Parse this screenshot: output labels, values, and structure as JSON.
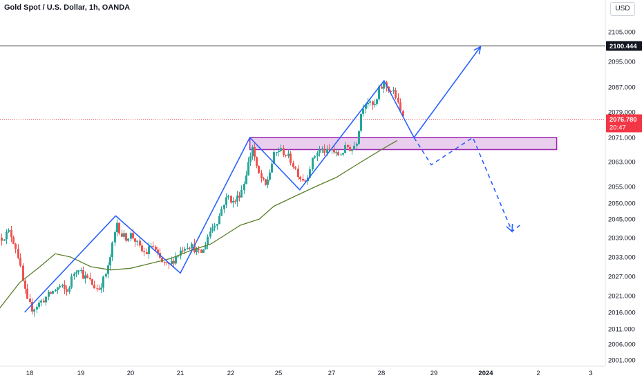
{
  "title": "Gold Spot / U.S. Dollar, 1h, OANDA",
  "currency_button": "USD",
  "colors": {
    "up": "#26a69a",
    "down": "#ef5350",
    "ma": "#5b7f2a",
    "pattern": "#2962ff",
    "zone_fill": "#e1bee7",
    "zone_border": "#9c27b0",
    "price_tag": "#f23645",
    "level_tag": "#131722"
  },
  "chart_data": {
    "type": "candlestick",
    "title": "Gold Spot / U.S. Dollar, 1h, OANDA",
    "y_ticks": [
      "2001.000",
      "2006.000",
      "2011.000",
      "2016.000",
      "2021.000",
      "2027.000",
      "2033.000",
      "2039.000",
      "2045.000",
      "2050.000",
      "2055.000",
      "2063.000",
      "2071.000",
      "2079.000",
      "2087.000",
      "2095.000",
      "2105.000"
    ],
    "y_tick_values": [
      2001,
      2006,
      2011,
      2016,
      2021,
      2027,
      2033,
      2039,
      2045,
      2050,
      2055,
      2063,
      2071,
      2079,
      2087,
      2095,
      2105
    ],
    "x_ticks": [
      {
        "label": "18",
        "day": 0,
        "bold": false
      },
      {
        "label": "19",
        "day": 1,
        "bold": false
      },
      {
        "label": "20",
        "day": 2,
        "bold": false
      },
      {
        "label": "21",
        "day": 3,
        "bold": false
      },
      {
        "label": "22",
        "day": 4,
        "bold": false
      },
      {
        "label": "25",
        "day": 5,
        "bold": false
      },
      {
        "label": "27",
        "day": 6,
        "bold": false
      },
      {
        "label": "28",
        "day": 7,
        "bold": false
      },
      {
        "label": "29",
        "day": 8,
        "bold": false
      },
      {
        "label": "2024",
        "day": 9,
        "bold": true
      },
      {
        "label": "2",
        "day": 10,
        "bold": false
      },
      {
        "label": "3",
        "day": 11,
        "bold": false
      }
    ],
    "ohlc_path": [
      [
        -0.55,
        2039
      ],
      [
        -0.4,
        2041
      ],
      [
        -0.25,
        2035
      ],
      [
        -0.15,
        2026
      ],
      [
        -0.05,
        2019
      ],
      [
        0.05,
        2017
      ],
      [
        0.2,
        2019
      ],
      [
        0.35,
        2021
      ],
      [
        0.5,
        2023
      ],
      [
        0.6,
        2024
      ],
      [
        0.72,
        2022
      ],
      [
        0.85,
        2028
      ],
      [
        0.95,
        2030
      ],
      [
        1.05,
        2027
      ],
      [
        1.15,
        2026
      ],
      [
        1.25,
        2024
      ],
      [
        1.35,
        2023
      ],
      [
        1.45,
        2026
      ],
      [
        1.55,
        2030
      ],
      [
        1.65,
        2038
      ],
      [
        1.72,
        2044
      ],
      [
        1.8,
        2040
      ],
      [
        1.9,
        2039
      ],
      [
        2.0,
        2040
      ],
      [
        2.1,
        2038
      ],
      [
        2.2,
        2035
      ],
      [
        2.3,
        2034
      ],
      [
        2.42,
        2037
      ],
      [
        2.55,
        2033
      ],
      [
        2.65,
        2031
      ],
      [
        2.75,
        2030
      ],
      [
        2.85,
        2032
      ],
      [
        2.95,
        2034
      ],
      [
        3.05,
        2036
      ],
      [
        3.15,
        2037
      ],
      [
        3.25,
        2036
      ],
      [
        3.35,
        2034
      ],
      [
        3.45,
        2035
      ],
      [
        3.55,
        2040
      ],
      [
        3.65,
        2043
      ],
      [
        3.75,
        2045
      ],
      [
        3.85,
        2050
      ],
      [
        3.95,
        2052
      ],
      [
        4.05,
        2050
      ],
      [
        4.15,
        2052
      ],
      [
        4.25,
        2055
      ],
      [
        4.35,
        2062
      ],
      [
        4.45,
        2068
      ],
      [
        4.55,
        2060
      ],
      [
        4.65,
        2057
      ],
      [
        4.72,
        2055
      ],
      [
        4.8,
        2059
      ],
      [
        4.9,
        2065
      ],
      [
        5.0,
        2067
      ],
      [
        5.1,
        2066
      ],
      [
        5.2,
        2064
      ],
      [
        5.3,
        2061
      ],
      [
        5.4,
        2058
      ],
      [
        5.5,
        2057
      ],
      [
        5.6,
        2062
      ],
      [
        5.7,
        2066
      ],
      [
        5.8,
        2067
      ],
      [
        5.9,
        2066
      ],
      [
        6.0,
        2067
      ],
      [
        6.1,
        2065
      ],
      [
        6.2,
        2066
      ],
      [
        6.3,
        2068
      ],
      [
        6.4,
        2067
      ],
      [
        6.5,
        2070
      ],
      [
        6.6,
        2080
      ],
      [
        6.7,
        2083
      ],
      [
        6.78,
        2081
      ],
      [
        6.88,
        2081
      ],
      [
        6.95,
        2086
      ],
      [
        7.05,
        2088
      ],
      [
        7.15,
        2086
      ],
      [
        7.25,
        2085
      ],
      [
        7.35,
        2079
      ],
      [
        7.42,
        2078
      ]
    ],
    "ma_points": [
      [
        -0.6,
        2017
      ],
      [
        -0.2,
        2025
      ],
      [
        0.2,
        2030
      ],
      [
        0.5,
        2034
      ],
      [
        0.8,
        2033
      ],
      [
        1.2,
        2030
      ],
      [
        1.6,
        2029
      ],
      [
        2.0,
        2029.5
      ],
      [
        2.4,
        2031
      ],
      [
        2.8,
        2032.5
      ],
      [
        3.2,
        2035
      ],
      [
        3.6,
        2037
      ],
      [
        3.9,
        2040
      ],
      [
        4.2,
        2043
      ],
      [
        4.6,
        2045
      ],
      [
        4.9,
        2049
      ],
      [
        5.3,
        2052
      ],
      [
        5.7,
        2055
      ],
      [
        6.1,
        2058
      ],
      [
        6.5,
        2062
      ],
      [
        6.8,
        2065
      ],
      [
        7.1,
        2068
      ],
      [
        7.3,
        2070
      ]
    ],
    "pattern_zigzag": [
      [
        -0.1,
        2016
      ],
      [
        1.7,
        2046
      ],
      [
        3.0,
        2028
      ],
      [
        4.4,
        2071
      ],
      [
        5.4,
        2054
      ],
      [
        7.05,
        2089
      ],
      [
        7.62,
        2071
      ],
      [
        8.9,
        2100
      ]
    ],
    "projection_path": [
      [
        7.62,
        2071
      ],
      [
        7.95,
        2062
      ],
      [
        8.75,
        2071
      ],
      [
        9.5,
        2041
      ],
      [
        9.65,
        2043
      ]
    ],
    "demand_zone": {
      "y_low": 2067,
      "y_high": 2071,
      "x_start": 4.4,
      "x_end": 10.35
    },
    "horizontal_level": {
      "value": 2100.444,
      "label": "2100.444"
    },
    "last_price": {
      "value": 2076.78,
      "label": "2076.780",
      "countdown": "20:47"
    },
    "currency": "USD"
  }
}
